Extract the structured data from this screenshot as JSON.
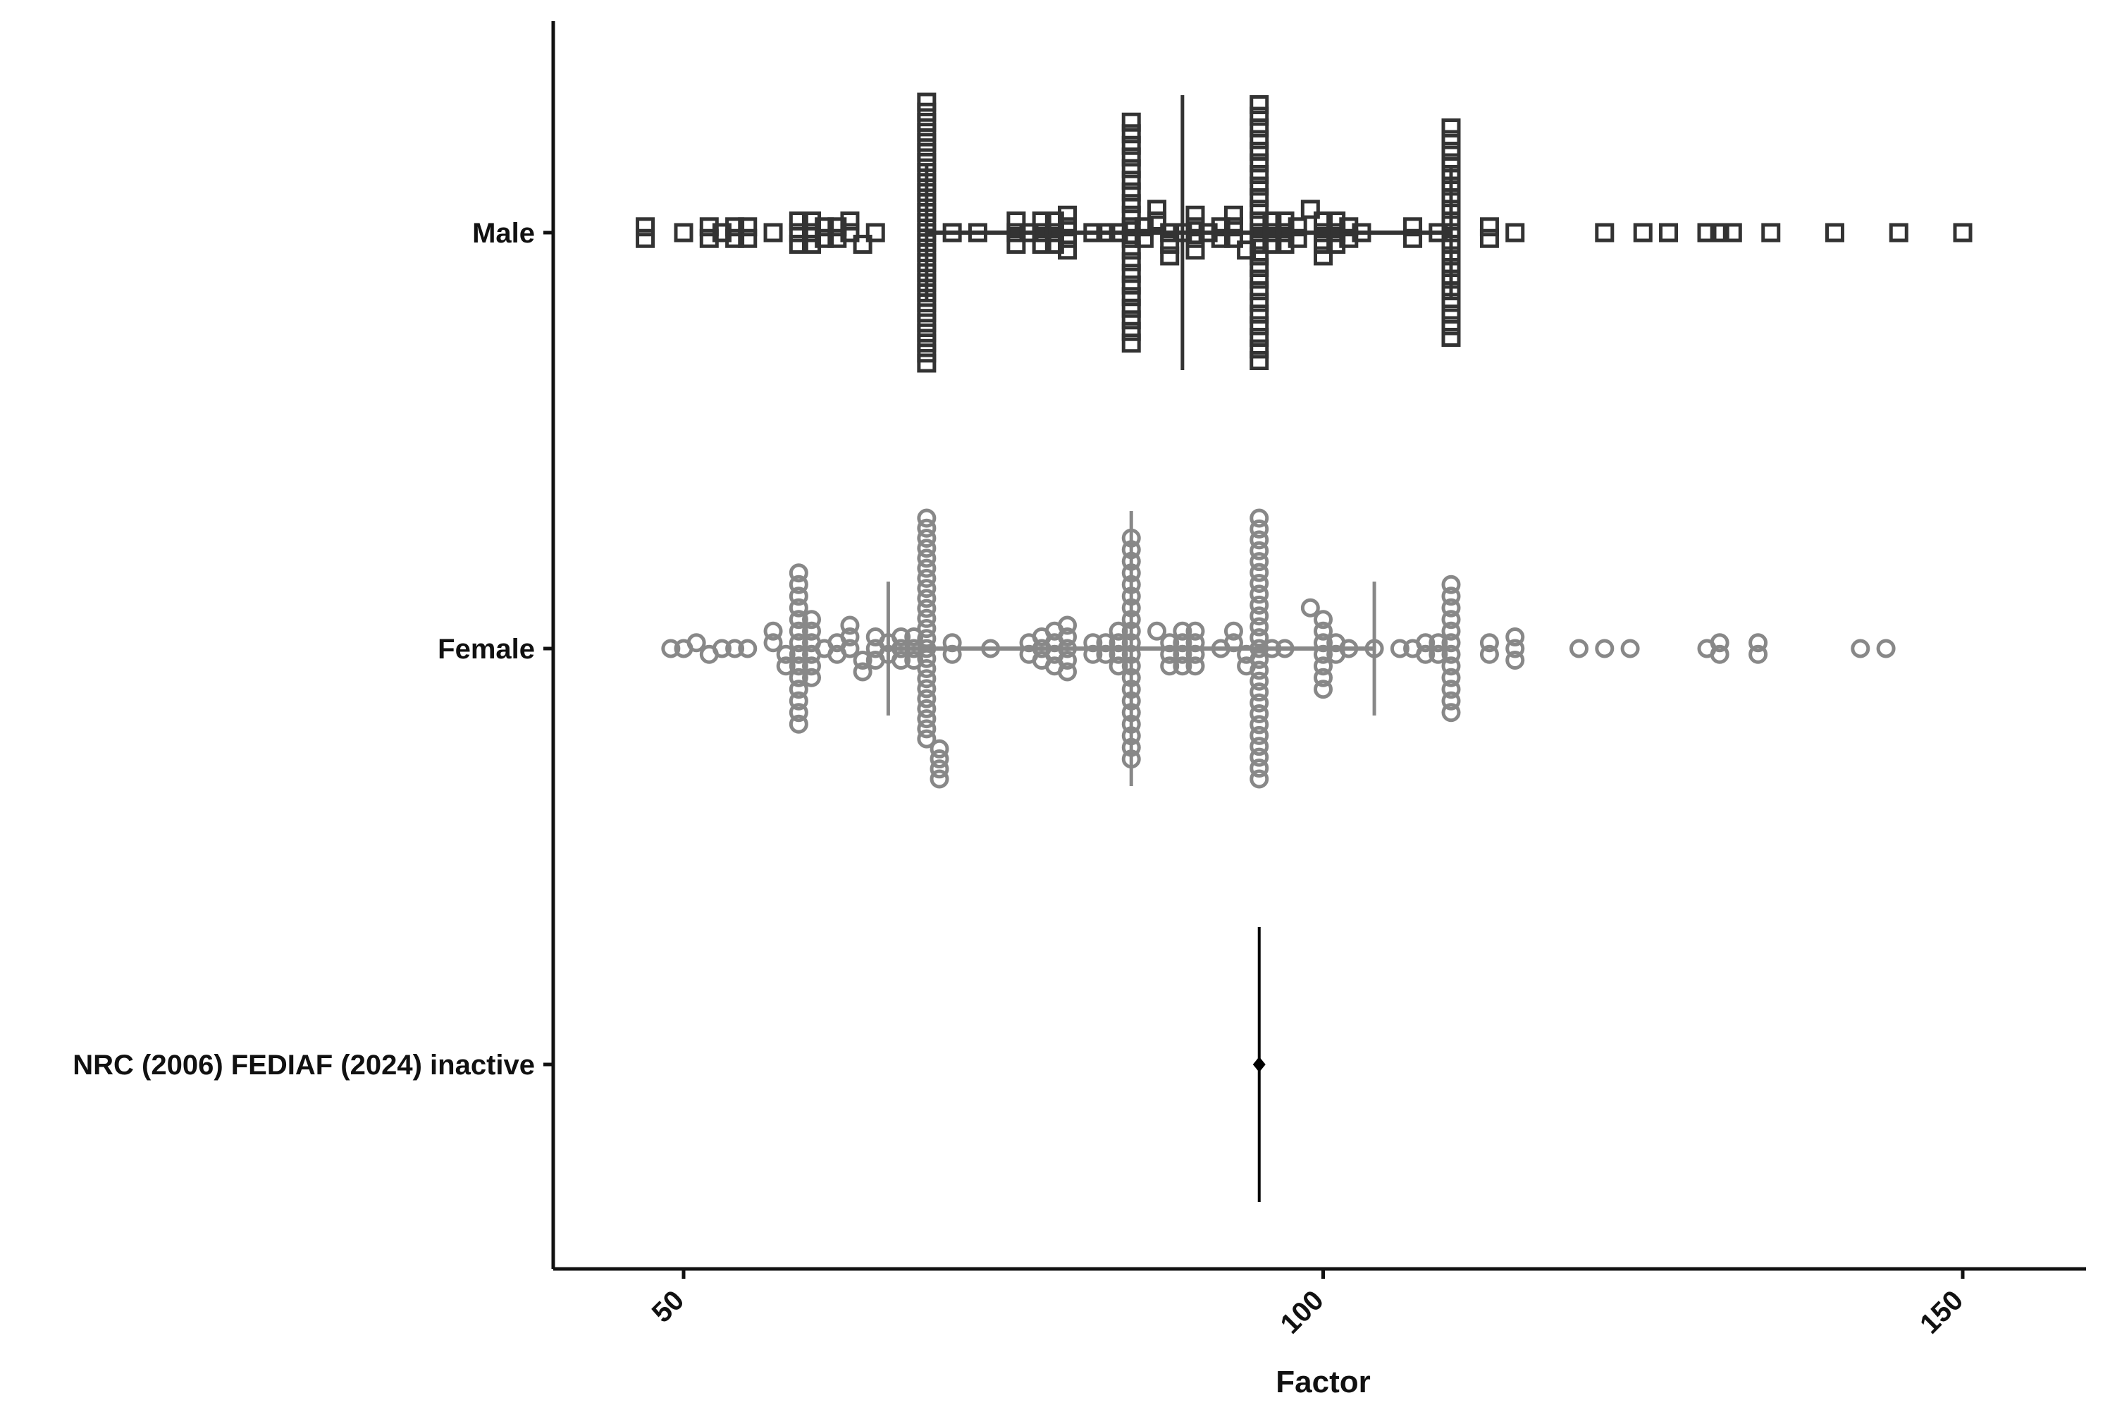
{
  "chart_data": {
    "type": "scatter",
    "subtype": "beeswarm-dot-plot",
    "xlabel": "Factor",
    "ylabel": "",
    "xlim": [
      40,
      160
    ],
    "x_ticks": [
      50,
      100,
      150
    ],
    "grid": false,
    "legend": "none",
    "categories": [
      "Male",
      "Female",
      "NRC (2006) FEDIAF (2024) inactive"
    ],
    "series": [
      {
        "category": "Male",
        "marker": "open-square",
        "color": "#333333",
        "median": 89,
        "q1": 69,
        "q3": 110,
        "values": [
          47,
          47,
          50,
          52,
          52,
          53,
          54,
          54,
          55,
          55,
          57,
          59,
          59,
          59,
          60,
          60,
          60,
          61,
          61,
          62,
          62,
          63,
          63,
          64,
          65,
          69,
          69,
          69,
          69,
          69,
          69,
          69,
          69,
          69,
          69,
          69,
          69,
          69,
          69,
          69,
          69,
          69,
          69,
          69,
          69,
          69,
          69,
          69,
          69,
          69,
          69,
          69,
          71,
          73,
          76,
          76,
          76,
          77,
          78,
          78,
          78,
          79,
          79,
          79,
          80,
          80,
          80,
          80,
          82,
          83,
          84,
          85,
          85,
          85,
          85,
          85,
          85,
          85,
          85,
          85,
          85,
          85,
          85,
          85,
          85,
          85,
          85,
          85,
          85,
          85,
          85,
          86,
          86,
          87,
          87,
          88,
          88,
          88,
          89,
          90,
          90,
          90,
          90,
          91,
          92,
          92,
          93,
          93,
          93,
          94,
          95,
          95,
          95,
          95,
          95,
          95,
          95,
          95,
          95,
          95,
          95,
          95,
          95,
          95,
          95,
          95,
          95,
          95,
          95,
          95,
          95,
          95,
          95,
          96,
          96,
          96,
          97,
          97,
          97,
          98,
          98,
          99,
          100,
          100,
          100,
          100,
          101,
          101,
          101,
          102,
          102,
          103,
          107,
          107,
          109,
          110,
          110,
          110,
          110,
          110,
          110,
          110,
          110,
          110,
          110,
          110,
          110,
          110,
          110,
          110,
          110,
          110,
          110,
          110,
          113,
          113,
          115,
          122,
          125,
          127,
          130,
          131,
          132,
          135,
          140,
          145,
          150
        ]
      },
      {
        "category": "Female",
        "marker": "open-circle",
        "color": "#888888",
        "median": 85,
        "q1": 66,
        "q3": 104,
        "values": [
          49,
          50,
          51,
          52,
          53,
          54,
          55,
          57,
          57,
          58,
          58,
          59,
          59,
          59,
          59,
          59,
          59,
          59,
          59,
          59,
          59,
          59,
          59,
          59,
          59,
          60,
          60,
          60,
          60,
          60,
          60,
          61,
          62,
          62,
          63,
          63,
          63,
          64,
          64,
          65,
          65,
          65,
          66,
          66,
          67,
          67,
          67,
          68,
          68,
          68,
          69,
          69,
          69,
          69,
          69,
          69,
          69,
          69,
          69,
          69,
          69,
          69,
          69,
          69,
          69,
          69,
          69,
          69,
          69,
          69,
          69,
          69,
          69,
          70,
          70,
          70,
          70,
          71,
          71,
          74,
          77,
          77,
          78,
          78,
          78,
          79,
          79,
          79,
          79,
          80,
          80,
          80,
          80,
          80,
          82,
          82,
          83,
          83,
          84,
          84,
          84,
          84,
          85,
          85,
          85,
          85,
          85,
          85,
          85,
          85,
          85,
          85,
          85,
          85,
          85,
          85,
          85,
          85,
          85,
          85,
          85,
          85,
          87,
          88,
          88,
          88,
          89,
          89,
          89,
          89,
          90,
          90,
          90,
          90,
          92,
          93,
          93,
          94,
          94,
          95,
          95,
          95,
          95,
          95,
          95,
          95,
          95,
          95,
          95,
          95,
          95,
          95,
          95,
          95,
          95,
          95,
          95,
          95,
          95,
          95,
          95,
          95,
          95,
          95,
          96,
          97,
          99,
          100,
          100,
          100,
          100,
          100,
          100,
          100,
          101,
          101,
          102,
          104,
          106,
          107,
          108,
          108,
          109,
          109,
          110,
          110,
          110,
          110,
          110,
          110,
          110,
          110,
          110,
          110,
          110,
          110,
          113,
          113,
          115,
          115,
          115,
          120,
          122,
          124,
          130,
          131,
          131,
          134,
          134,
          142,
          144
        ]
      },
      {
        "category": "NRC (2006) FEDIAF (2024) inactive",
        "marker": "diamond",
        "color": "#000000",
        "median": 95,
        "values": [
          95
        ]
      }
    ]
  }
}
